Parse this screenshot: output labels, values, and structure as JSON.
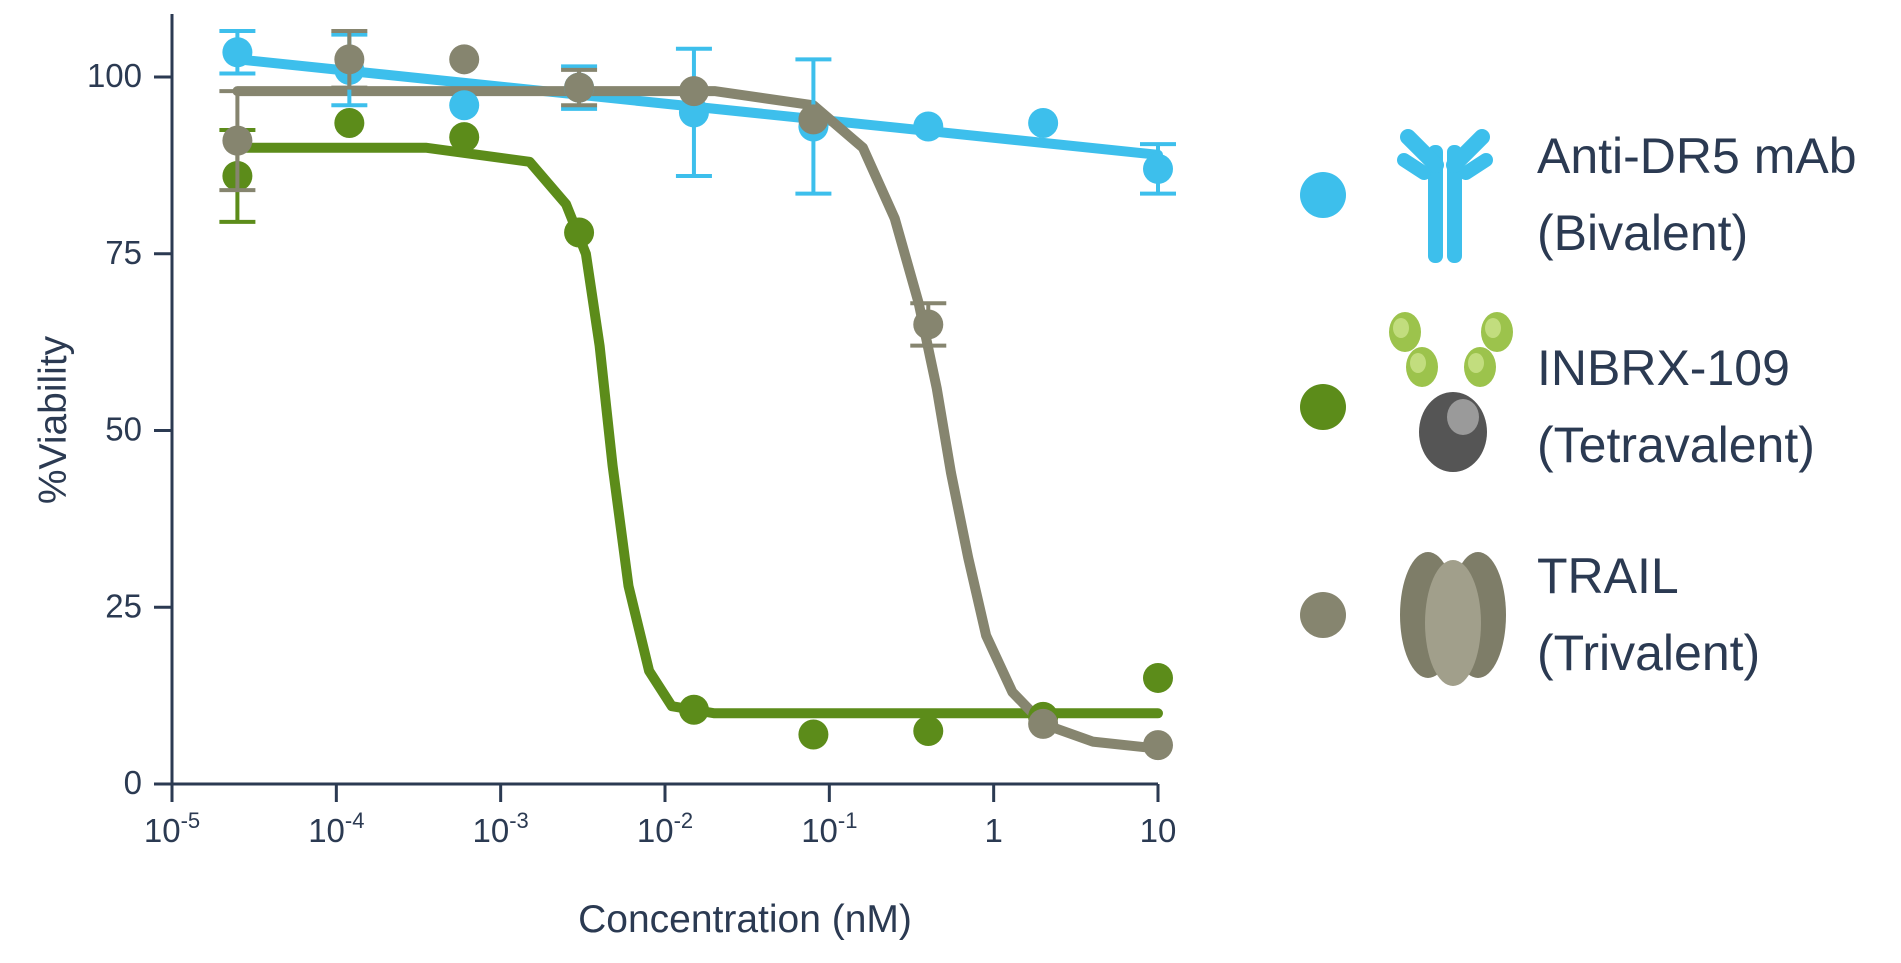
{
  "chart_data": {
    "type": "scatter",
    "title": "",
    "xlabel": "Concentration (nM)",
    "ylabel": "%Viability",
    "xscale": "log",
    "xlim": [
      1e-05,
      10
    ],
    "ylim": [
      0,
      105
    ],
    "x_ticks": [
      {
        "value": 1e-05,
        "base": "10",
        "exp": "-5"
      },
      {
        "value": 0.0001,
        "base": "10",
        "exp": "-4"
      },
      {
        "value": 0.001,
        "base": "10",
        "exp": "-3"
      },
      {
        "value": 0.01,
        "base": "10",
        "exp": "-2"
      },
      {
        "value": 0.1,
        "base": "10",
        "exp": "-1"
      },
      {
        "value": 1,
        "base": "1",
        "exp": ""
      },
      {
        "value": 10,
        "base": "10",
        "exp": ""
      }
    ],
    "y_ticks": [
      0,
      25,
      50,
      75,
      100
    ],
    "grid": false,
    "legend_position": "right",
    "series": [
      {
        "name": "Anti-DR5 mAb",
        "subtitle": "(Bivalent)",
        "color": "#3dbfec",
        "icon": "antibody-icon",
        "x": [
          2.5e-05,
          0.00012,
          0.0006,
          0.003,
          0.015,
          0.08,
          0.4,
          2,
          10
        ],
        "y": [
          103.5,
          101,
          96,
          98.5,
          95,
          93,
          93,
          93.5,
          87
        ],
        "err": [
          3,
          5,
          0,
          3,
          9,
          9.5,
          0,
          0,
          3.5
        ],
        "curve_x": [
          2.5e-05,
          10
        ],
        "curve_y": [
          102.5,
          89
        ]
      },
      {
        "name": "INBRX-109",
        "subtitle": "(Tetravalent)",
        "color": "#5c8c1a",
        "icon": "tetravalent-protein-icon",
        "x": [
          2.5e-05,
          0.00012,
          0.0006,
          0.003,
          0.015,
          0.08,
          0.4,
          2,
          10
        ],
        "y": [
          86,
          93.5,
          91.5,
          78,
          10.5,
          7,
          7.5,
          9.5,
          15
        ],
        "err": [
          6.5,
          0,
          0,
          0,
          0,
          0,
          0,
          0,
          0
        ],
        "curve_x": [
          2.5e-05,
          0.00035,
          0.0015,
          0.0025,
          0.0033,
          0.004,
          0.0048,
          0.006,
          0.008,
          0.011,
          0.02,
          0.1,
          1,
          10
        ],
        "curve_y": [
          90,
          90,
          88,
          82,
          75,
          62,
          45,
          28,
          16,
          11,
          10,
          10,
          10,
          10
        ]
      },
      {
        "name": "TRAIL",
        "subtitle": "(Trivalent)",
        "color": "#86856f",
        "icon": "trimer-icon",
        "x": [
          2.5e-05,
          0.00012,
          0.0006,
          0.003,
          0.015,
          0.08,
          0.4,
          2,
          10
        ],
        "y": [
          91,
          102.5,
          102.5,
          98.5,
          98,
          94,
          65,
          8.5,
          5.5
        ],
        "err": [
          7,
          4,
          0,
          2.5,
          0,
          0,
          3,
          0,
          0
        ],
        "curve_x": [
          2.5e-05,
          0.02,
          0.08,
          0.16,
          0.25,
          0.35,
          0.45,
          0.55,
          0.7,
          0.9,
          1.3,
          2,
          4,
          10
        ],
        "curve_y": [
          98,
          98,
          96,
          90,
          80,
          68,
          56,
          44,
          32,
          21,
          13,
          8.5,
          6,
          5
        ]
      }
    ]
  }
}
